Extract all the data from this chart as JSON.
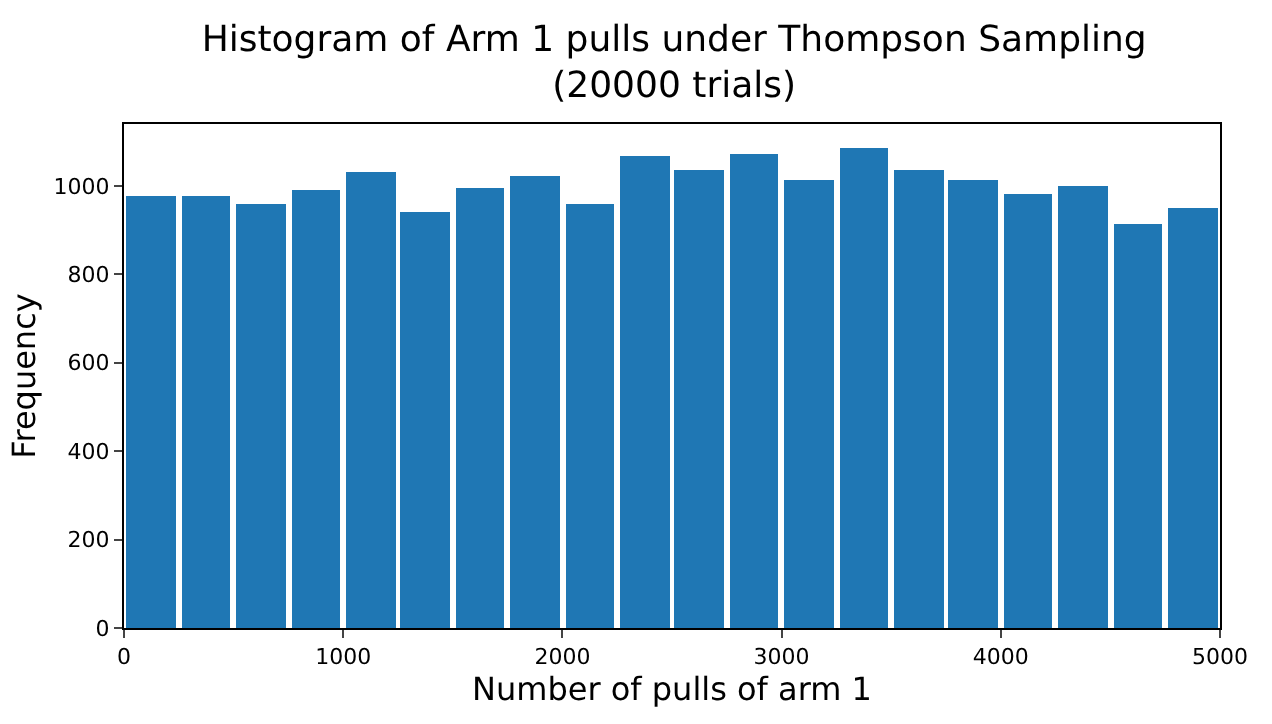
{
  "chart_data": {
    "type": "histogram",
    "title": "Histogram of Arm 1 pulls under Thompson Sampling\n(20000 trials)",
    "xlabel": "Number of pulls of arm 1",
    "ylabel": "Frequency",
    "bins": [
      0,
      250,
      500,
      750,
      1000,
      1250,
      1500,
      1750,
      2000,
      2250,
      2500,
      2750,
      3000,
      3250,
      3500,
      3750,
      4000,
      4250,
      4500,
      4750,
      5000
    ],
    "values": [
      978,
      978,
      961,
      990,
      1032,
      940,
      994,
      1024,
      961,
      1069,
      1036,
      1074,
      1015,
      1086,
      1036,
      1015,
      982,
      999,
      915,
      949
    ],
    "color": "#1f77b4",
    "xlim": [
      0,
      5000
    ],
    "xticks": [
      0,
      1000,
      2000,
      3000,
      4000,
      5000
    ],
    "ylim": [
      0,
      1140
    ],
    "yticks": [
      0,
      200,
      400,
      600,
      800,
      1000
    ]
  }
}
